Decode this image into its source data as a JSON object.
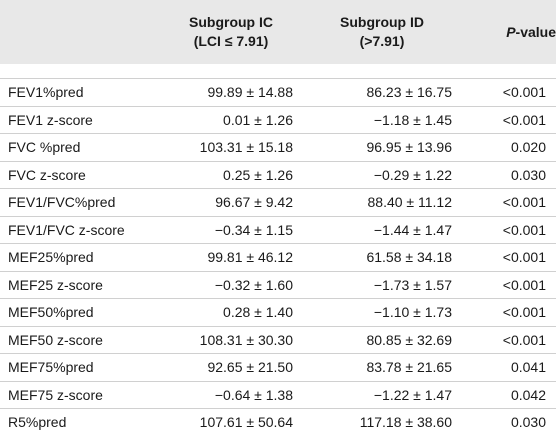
{
  "header": {
    "col0": "",
    "col1_line1": "Subgroup IC",
    "col1_line2": "(LCI ≤ 7.91)",
    "col2_line1": "Subgroup ID",
    "col2_line2": "(>7.91)",
    "col3_italic": "P",
    "col3_rest": "-value"
  },
  "rows": [
    {
      "label": "FEV1%pred",
      "ic": "99.89 ± 14.88",
      "id": "86.23 ± 16.75",
      "p": "<0.001"
    },
    {
      "label": "FEV1 z-score",
      "ic": "0.01 ± 1.26",
      "id": "−1.18 ± 1.45",
      "p": "<0.001"
    },
    {
      "label": "FVC %pred",
      "ic": "103.31 ± 15.18",
      "id": "96.95 ± 13.96",
      "p": "0.020"
    },
    {
      "label": "FVC z-score",
      "ic": "0.25 ± 1.26",
      "id": "−0.29 ± 1.22",
      "p": "0.030"
    },
    {
      "label": "FEV1/FVC%pred",
      "ic": "96.67 ± 9.42",
      "id": "88.40 ± 11.12",
      "p": "<0.001"
    },
    {
      "label": "FEV1/FVC z-score",
      "ic": "−0.34 ± 1.15",
      "id": "−1.44 ± 1.47",
      "p": "<0.001"
    },
    {
      "label": "MEF25%pred",
      "ic": "99.81 ± 46.12",
      "id": "61.58 ± 34.18",
      "p": "<0.001"
    },
    {
      "label": "MEF25 z-score",
      "ic": "−0.32 ± 1.60",
      "id": "−1.73 ± 1.57",
      "p": "<0.001"
    },
    {
      "label": "MEF50%pred",
      "ic": "0.28 ± 1.40",
      "id": "−1.10 ± 1.73",
      "p": "<0.001"
    },
    {
      "label": "MEF50 z-score",
      "ic": "108.31 ± 30.30",
      "id": "80.85 ± 32.69",
      "p": "<0.001"
    },
    {
      "label": "MEF75%pred",
      "ic": "92.65 ± 21.50",
      "id": "83.78 ± 21.65",
      "p": "0.041"
    },
    {
      "label": "MEF75 z-score",
      "ic": "−0.64 ± 1.38",
      "id": "−1.22 ± 1.47",
      "p": "0.042"
    },
    {
      "label": "R5%pred",
      "ic": "107.61 ± 50.64",
      "id": "117.18 ± 38.60",
      "p": "0.030"
    }
  ]
}
